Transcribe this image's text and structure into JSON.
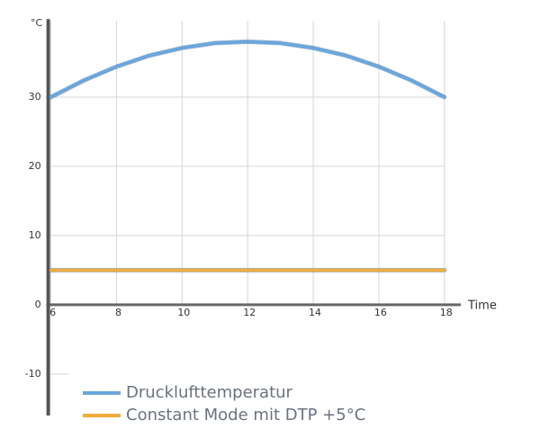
{
  "chart_data": {
    "type": "line",
    "y_label": "°C",
    "x_label": "Time",
    "x": [
      6,
      7,
      8,
      9,
      10,
      11,
      12,
      13,
      14,
      15,
      16,
      17,
      18
    ],
    "series": [
      {
        "name": "Drucklufttemperatur",
        "color": "#6aa6dc",
        "values": [
          30,
          32.4,
          34.4,
          36,
          37.1,
          37.8,
          38,
          37.8,
          37.1,
          36,
          34.4,
          32.4,
          30
        ]
      },
      {
        "name": "Constant Mode mit DTP +5°C",
        "color": "#f0ac3c",
        "values": [
          5,
          5,
          5,
          5,
          5,
          5,
          5,
          5,
          5,
          5,
          5,
          5,
          5
        ]
      }
    ],
    "xlim": [
      6,
      18.5
    ],
    "xticks": [
      6,
      8,
      10,
      12,
      14,
      16,
      18
    ],
    "ylim": [
      -16,
      41
    ],
    "yticks": [
      -10,
      0,
      10,
      20,
      30
    ],
    "grid": true,
    "legend": "bottom-left"
  }
}
